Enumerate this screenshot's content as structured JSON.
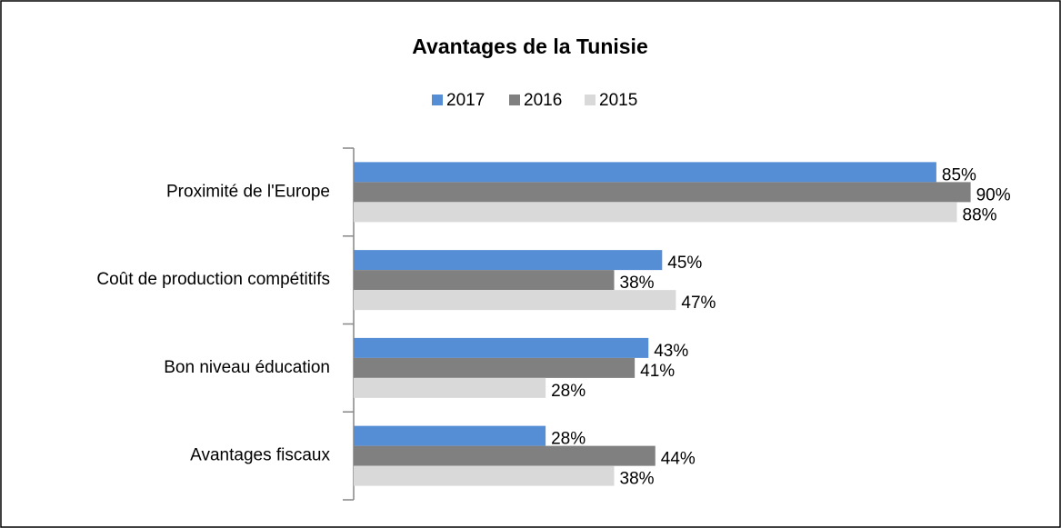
{
  "chart_data": {
    "type": "bar",
    "orientation": "horizontal",
    "title": "Avantages de la Tunisie",
    "categories": [
      "Proximité de l'Europe",
      "Coût de production compétitifs",
      "Bon niveau éducation",
      "Avantages fiscaux"
    ],
    "series": [
      {
        "name": "2017",
        "color": "#558ed5",
        "values": [
          85,
          45,
          43,
          28
        ],
        "value_labels": [
          "85%",
          "45%",
          "43%",
          "28%"
        ]
      },
      {
        "name": "2016",
        "color": "#808080",
        "values": [
          90,
          38,
          41,
          44
        ],
        "value_labels": [
          "90%",
          "38%",
          "41%",
          "44%"
        ]
      },
      {
        "name": "2015",
        "color": "#d9d9d9",
        "values": [
          88,
          47,
          28,
          38
        ],
        "value_labels": [
          "88%",
          "47%",
          "28%",
          "38%"
        ]
      }
    ],
    "xlim": [
      0,
      100
    ],
    "legend": "top"
  }
}
